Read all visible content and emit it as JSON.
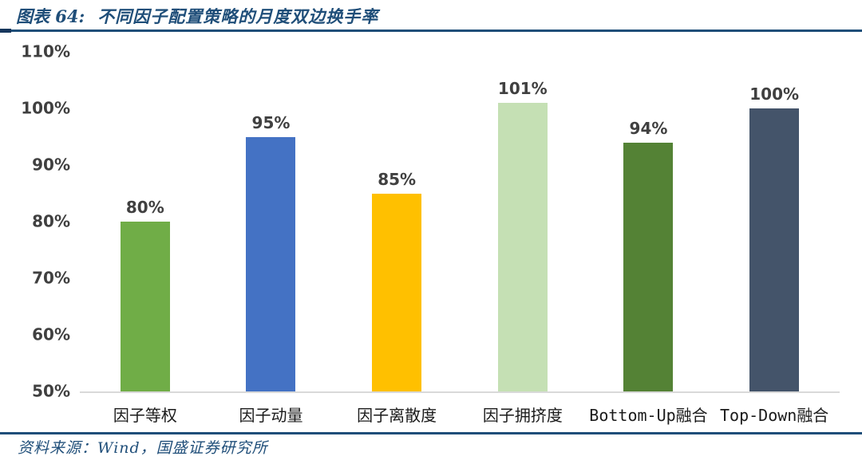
{
  "header": {
    "figure_label": "图表 64:",
    "figure_title": "不同因子配置策略的月度双边换手率"
  },
  "footer": {
    "source": "资料来源：Wind，国盛证券研究所"
  },
  "colors": {
    "accent_navy": "#1F4E79",
    "axis_line": "#D9D9D9",
    "tick_label": "#404040",
    "data_label": "#404040",
    "category_label": "#1A1A1A"
  },
  "chart_data": {
    "type": "bar",
    "title": "不同因子配置策略的月度双边换手率",
    "xlabel": "",
    "ylabel": "",
    "categories": [
      "因子等权",
      "因子动量",
      "因子离散度",
      "因子拥挤度",
      "Bottom-Up融合",
      "Top-Down融合"
    ],
    "values": [
      80,
      95,
      85,
      101,
      94,
      100
    ],
    "value_labels": [
      "80%",
      "95%",
      "85%",
      "101%",
      "94%",
      "100%"
    ],
    "bar_colors": [
      "#70AD47",
      "#4472C4",
      "#FFC000",
      "#C5E0B4",
      "#548235",
      "#44546A"
    ],
    "ylim": [
      50,
      110
    ],
    "ytick_step": 10,
    "ytick_labels": [
      "110%",
      "100%",
      "90%",
      "80%",
      "70%",
      "60%",
      "50%"
    ],
    "grid": false,
    "legend": "none",
    "unit": "percent"
  }
}
